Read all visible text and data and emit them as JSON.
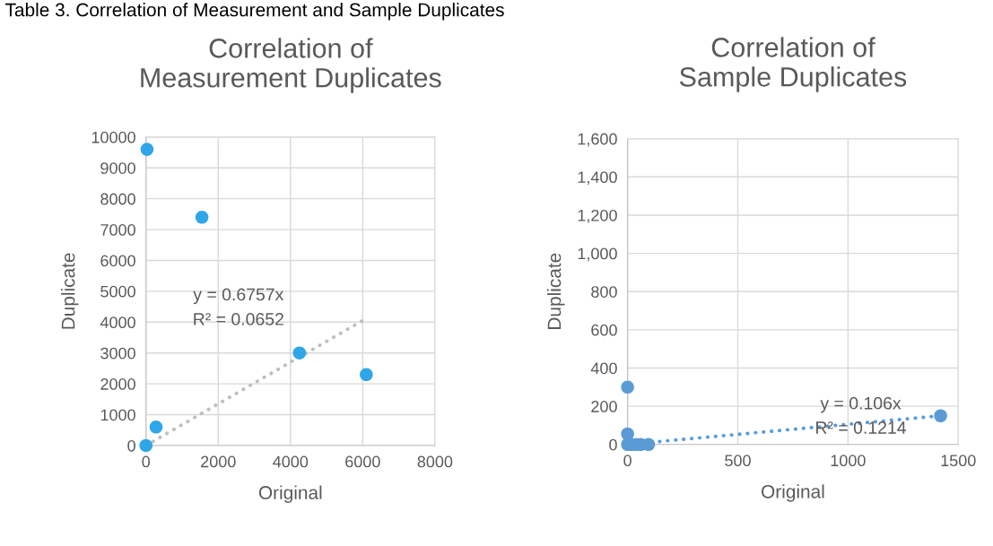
{
  "chart_data": [
    {
      "type": "scatter",
      "title": "Correlation of\nMeasurement Duplicates",
      "xlabel": "Original",
      "ylabel": "Duplicate",
      "annotations": [
        "Table 3. Correlation of Measurement and Sample Duplicates",
        "y = 0.6757x",
        "R² = 0.0652"
      ],
      "series": [
        {
          "color": "#2ea6e8",
          "marker": "circle",
          "x": [
            0,
            30,
            1550,
            280,
            4250,
            6100
          ],
          "values": [
            0,
            9600,
            7400,
            600,
            3000,
            2300
          ]
        },
        {
          "type": "line",
          "color": "#bfbfbf",
          "line_style": "dotted",
          "x": [
            0,
            6100
          ],
          "values": [
            0,
            4120
          ]
        }
      ],
      "xlim": [
        0,
        8000
      ],
      "xticks": [
        0,
        2000,
        4000,
        6000,
        8000
      ],
      "ylim": [
        0,
        10000
      ],
      "yticks": [
        0,
        1000,
        2000,
        3000,
        4000,
        5000,
        6000,
        7000,
        8000,
        9000,
        10000
      ],
      "grid": true
    },
    {
      "type": "scatter",
      "title": "Correlation of\nSample Duplicates",
      "xlabel": "Original",
      "ylabel": "Duplicate",
      "annotations": [
        "y = 0.106x",
        "R² = 0.1214"
      ],
      "series": [
        {
          "color": "#5b9bd5",
          "marker": "circle",
          "x": [
            0,
            0,
            0,
            20,
            40,
            60,
            95,
            1420
          ],
          "values": [
            300,
            55,
            0,
            0,
            0,
            0,
            0,
            150
          ]
        },
        {
          "type": "line",
          "color": "#5b9bd5",
          "line_style": "dotted",
          "x": [
            0,
            1420
          ],
          "values": [
            0,
            150
          ]
        }
      ],
      "xlim": [
        0,
        1500
      ],
      "xticks": [
        0,
        500,
        1000,
        1500
      ],
      "ylim": [
        0,
        1600
      ],
      "yticks": [
        0,
        {
          "value": 200,
          "label": "200"
        },
        {
          "value": 400,
          "label": "400"
        },
        {
          "value": 600,
          "label": "600"
        },
        {
          "value": 800,
          "label": "800"
        },
        {
          "value": 1000,
          "label": "1,000"
        },
        {
          "value": 1200,
          "label": "1,200"
        },
        {
          "value": 1400,
          "label": "1,400"
        },
        {
          "value": 1600,
          "label": "1,600"
        }
      ],
      "grid": true
    }
  ]
}
